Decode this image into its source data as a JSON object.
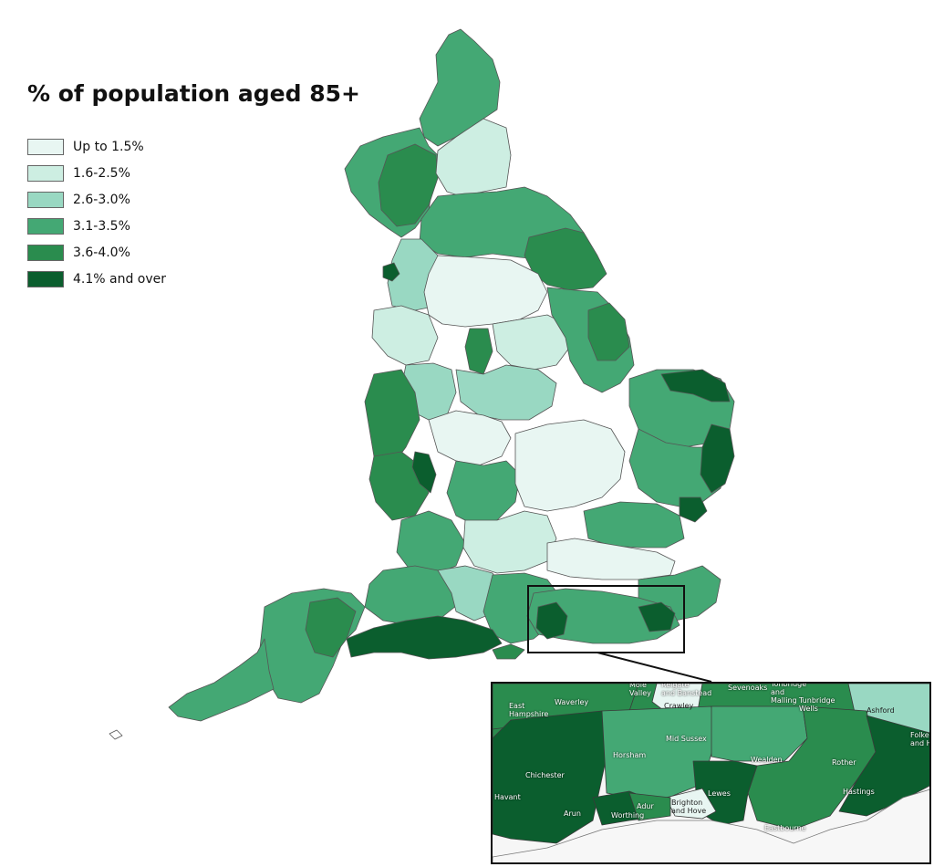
{
  "legend": {
    "title": "% of population aged 85+",
    "items": [
      {
        "label": "Up to 1.5%",
        "color": "#e8f6f2"
      },
      {
        "label": "1.6-2.5%",
        "color": "#cdeee2"
      },
      {
        "label": "2.6-3.0%",
        "color": "#99d8c2"
      },
      {
        "label": "3.1-3.5%",
        "color": "#44a874"
      },
      {
        "label": "3.6-4.0%",
        "color": "#2a8c4e"
      },
      {
        "label": "4.1% and over",
        "color": "#0b5e2e"
      }
    ]
  },
  "inset": {
    "labels": {
      "waverley": "Waverley",
      "east_hampshire": "East\nHampshire",
      "mole_valley": "Mole\nValley",
      "reigate": "Reigate\nand Banstead",
      "crawley": "Crawley",
      "sevenoaks": "Sevenoaks",
      "tonbridge": "Tonbridge\nand\nMalling",
      "tunbridge_wells": "Tunbridge\nWells",
      "ashford": "Ashford",
      "folkestone": "Folke\nand H",
      "mid_sussex": "Mid Sussex",
      "horsham": "Horsham",
      "wealden": "Wealden",
      "rother": "Rother",
      "chichester": "Chichester",
      "havant": "Havant",
      "arun": "Arun",
      "adur": "Adur",
      "worthing": "Worthing",
      "brighton": "Brighton\nand Hove",
      "lewes": "Lewes",
      "hastings": "Hastings",
      "eastbourne": "Eastbourne"
    }
  }
}
